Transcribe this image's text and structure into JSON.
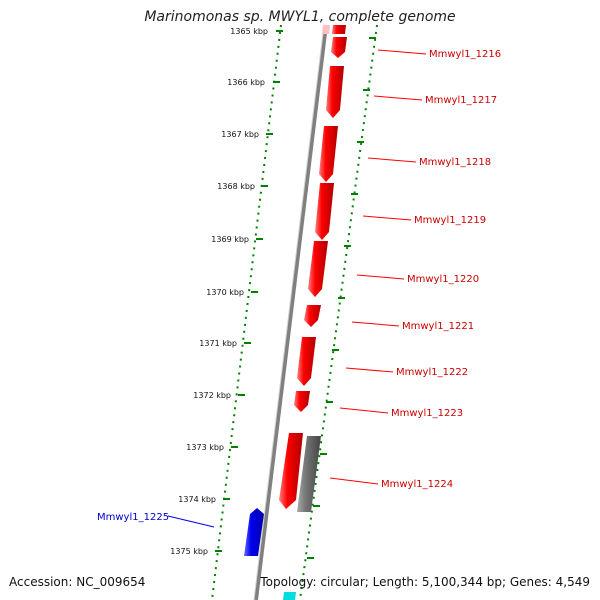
{
  "title": "Marinomonas sp. MWYL1, complete genome",
  "accession": "Accession: NC_009654",
  "topology": "Topology: circular; Length: 5,100,344 bp; Genes: 4,549",
  "colors": {
    "forward_gene": "#ff0000",
    "reverse_gene": "#0000ee",
    "other_feature": "#666666",
    "tick": "#008000",
    "backbone": "#808080"
  },
  "ticks": [
    "1365 kbp",
    "1366 kbp",
    "1367 kbp",
    "1368 kbp",
    "1369 kbp",
    "1370 kbp",
    "1371 kbp",
    "1372 kbp",
    "1373 kbp",
    "1374 kbp",
    "1375 kbp"
  ],
  "genes": [
    {
      "label": "Mmwyl1_1216",
      "strand": "+"
    },
    {
      "label": "Mmwyl1_1217",
      "strand": "+"
    },
    {
      "label": "Mmwyl1_1218",
      "strand": "+"
    },
    {
      "label": "Mmwyl1_1219",
      "strand": "+"
    },
    {
      "label": "Mmwyl1_1220",
      "strand": "+"
    },
    {
      "label": "Mmwyl1_1221",
      "strand": "+"
    },
    {
      "label": "Mmwyl1_1222",
      "strand": "+"
    },
    {
      "label": "Mmwyl1_1223",
      "strand": "+"
    },
    {
      "label": "Mmwyl1_1224",
      "strand": "+"
    },
    {
      "label": "Mmwyl1_1225",
      "strand": "-"
    }
  ]
}
